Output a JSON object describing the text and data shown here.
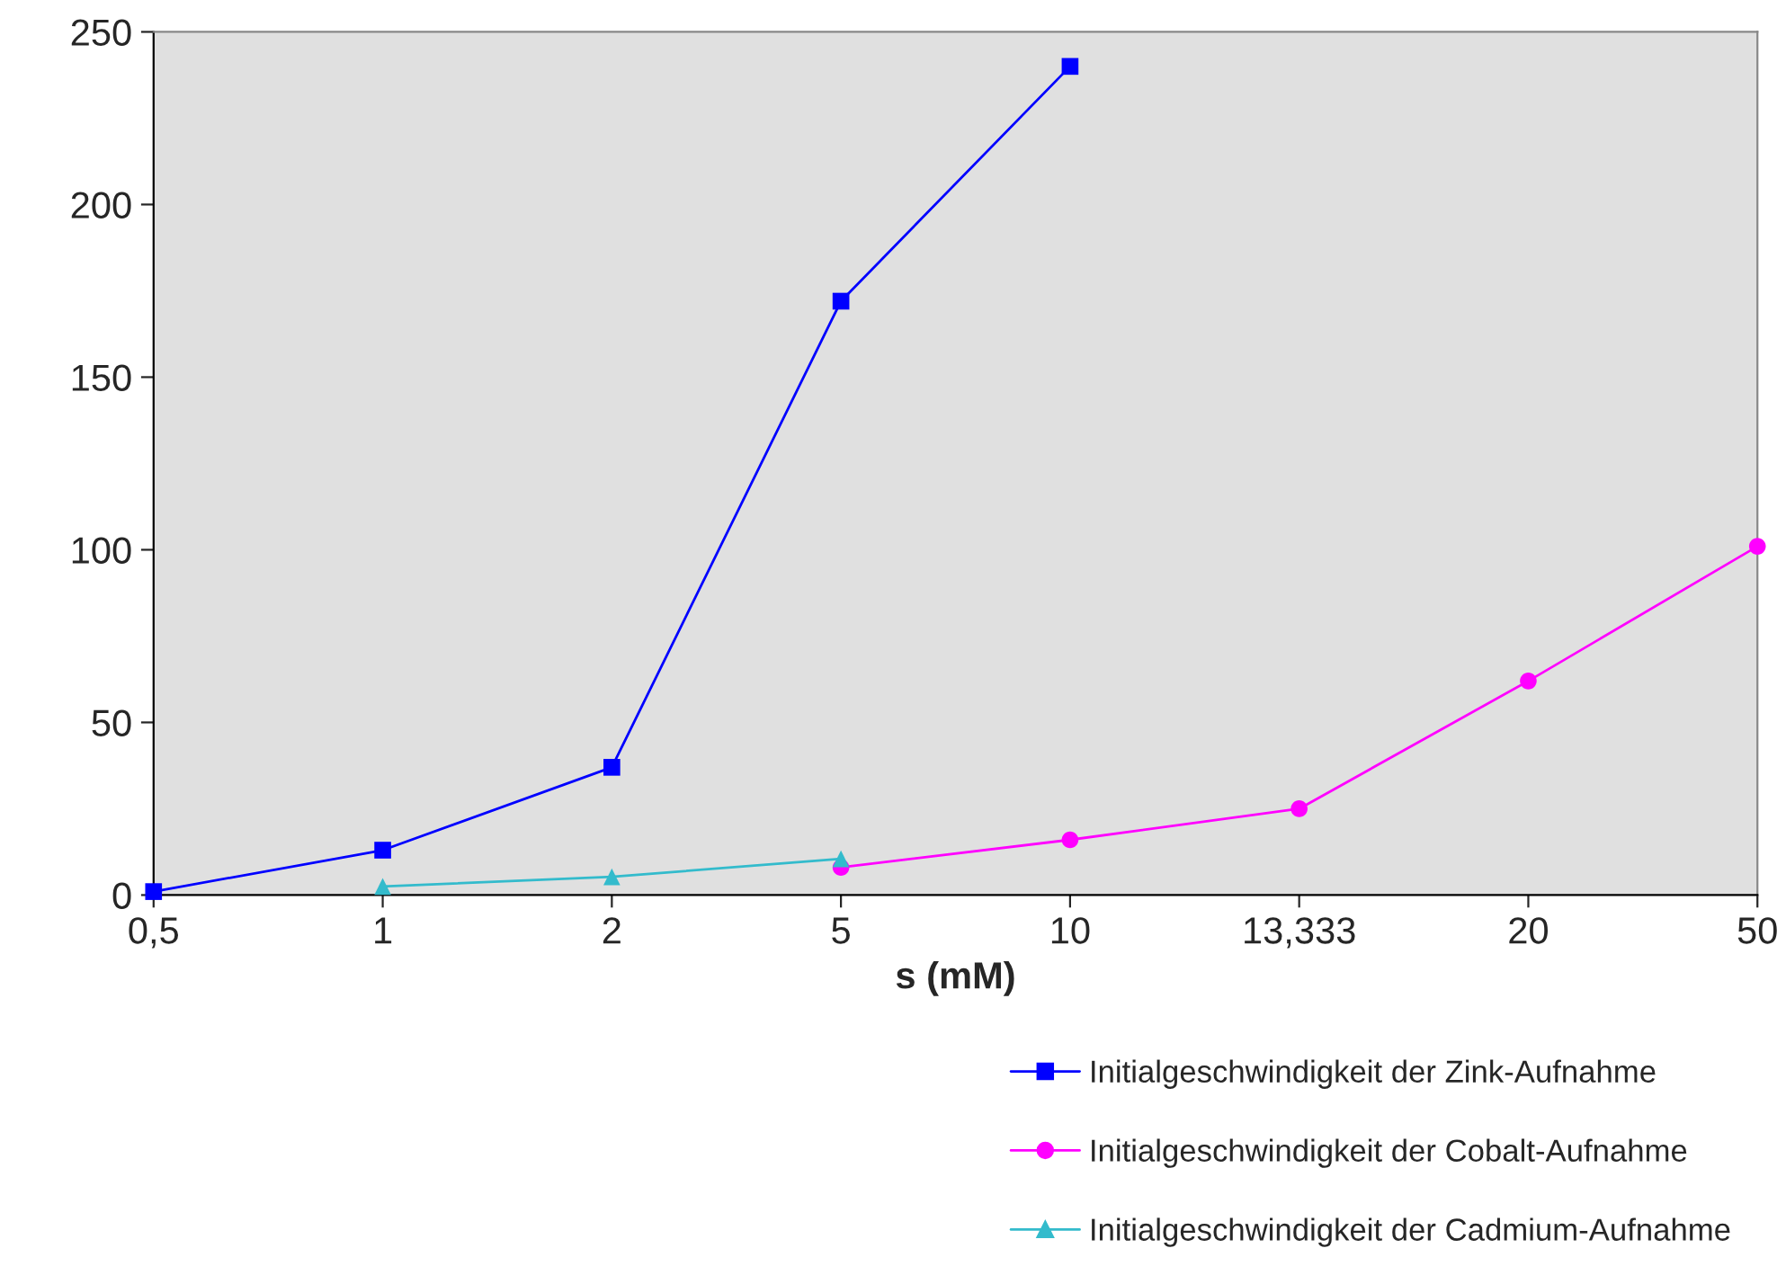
{
  "chart_data": {
    "type": "line",
    "xlabel": "s (mM)",
    "categories": [
      "0,5",
      "1",
      "2",
      "5",
      "10",
      "13,333",
      "20",
      "50"
    ],
    "ylim": [
      0,
      250
    ],
    "yticks": [
      0,
      50,
      100,
      150,
      200,
      250
    ],
    "grid": false,
    "legend": "bottom right",
    "line_style": "solid",
    "series": [
      {
        "name": "Initialgeschwindigkeit der Zink-Aufnahme",
        "color": "#0000ff",
        "marker": "square",
        "values": [
          1,
          13,
          37,
          172,
          240,
          null,
          null,
          null
        ]
      },
      {
        "name": "Initialgeschwindigkeit der Cobalt-Aufnahme",
        "color": "#ff00ff",
        "marker": "circle",
        "values": [
          null,
          null,
          null,
          8,
          16,
          25,
          62,
          101
        ]
      },
      {
        "name": "Initialgeschwindigkeit der Cadmium-Aufnahme",
        "color": "#33bbcc",
        "marker": "triangle",
        "values": [
          null,
          2.5,
          5.3,
          10.5,
          null,
          null,
          null,
          null
        ]
      }
    ]
  }
}
